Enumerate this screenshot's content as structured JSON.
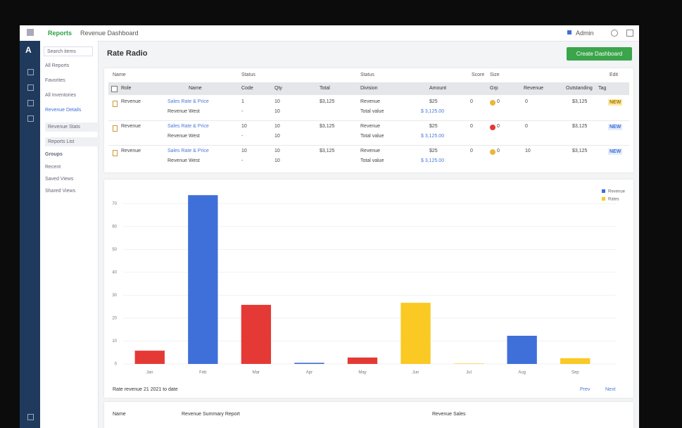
{
  "topbar": {
    "app": "Reports",
    "breadcrumb": "Revenue Dashboard",
    "user": "Admin"
  },
  "sidebar": {
    "logo": "A",
    "search": "Search items",
    "items": [
      "All Reports",
      "Favorites",
      "All Inventories",
      "Revenue Details",
      "Revenue Stats",
      "Reports List"
    ],
    "section": "Groups",
    "section_items": [
      "Recent",
      "Saved Views",
      "Shared Views"
    ]
  },
  "header": {
    "title": "Rate Radio",
    "button": "Create Dashboard"
  },
  "table": {
    "filters": [
      "Name",
      "Status",
      "Status",
      "Score",
      "Size",
      "Edit"
    ],
    "columns": [
      "Role",
      "Name",
      "Code",
      "Qty",
      "Total",
      "Division",
      "Amount",
      "Grp",
      "Revenue",
      "Outstanding",
      "Tag"
    ],
    "rows": [
      {
        "role": "Revenue",
        "name": "Sales Rate & Price",
        "name_sub": "Revenue West",
        "code": "1",
        "code_sub": "-",
        "qty": "10",
        "qty_sub": "10",
        "total": "$3,125",
        "division": "Revenue",
        "division_sub": "Total value",
        "amount": "$25",
        "amount_sub": "$ 3,125.00",
        "grp": "0",
        "score": "0",
        "revenue": "0",
        "outstanding": "$3,125",
        "tag": "NEW"
      },
      {
        "role": "Revenue",
        "name": "Sales Rate & Price",
        "name_sub": "Revenue West",
        "code": "10",
        "code_sub": "-",
        "qty": "10",
        "qty_sub": "10",
        "total": "$3,125",
        "division": "Revenue",
        "division_sub": "Total value",
        "amount": "$25",
        "amount_sub": "$ 3,125.00",
        "grp": "0",
        "score": "0",
        "revenue": "0",
        "outstanding": "$3,125",
        "tag": "NEW"
      },
      {
        "role": "Revenue",
        "name": "Sales Rate & Price",
        "name_sub": "Revenue West",
        "code": "10",
        "code_sub": "-",
        "qty": "10",
        "qty_sub": "10",
        "total": "$3,125",
        "division": "Revenue",
        "division_sub": "Total value",
        "amount": "$25",
        "amount_sub": "$ 3,125.00",
        "grp": "0",
        "score": "0",
        "revenue": "10",
        "outstanding": "$3,125",
        "tag": "NEW"
      }
    ]
  },
  "chart_data": {
    "type": "bar",
    "categories": [
      "Jan",
      "Feb",
      "Mar",
      "Apr",
      "May",
      "Jun",
      "Jul",
      "Aug",
      "Sep"
    ],
    "values": [
      5.8,
      73.7,
      25.8,
      0.5,
      2.8,
      26.7,
      0.2,
      12.3,
      2.5
    ],
    "colors": [
      "#e53935",
      "#3f6fd8",
      "#e53935",
      "#3f6fd8",
      "#e53935",
      "#fbc923",
      "#fbc923",
      "#3f6fd8",
      "#fbc923"
    ],
    "legend": [
      {
        "name": "Revenue",
        "color": "#3f6fd8"
      },
      {
        "name": "Rates",
        "color": "#fbc923"
      }
    ],
    "ylim": [
      0,
      75
    ],
    "yticks": [
      0,
      10,
      20,
      30,
      40,
      50,
      60,
      70
    ],
    "grid": true,
    "footnote": "Rate revenue 21 2021 to date",
    "links": [
      "Prev",
      "Next"
    ]
  },
  "bottom": {
    "labels": [
      "Name",
      "Revenue Summary Report",
      "Revenue Sales"
    ]
  }
}
